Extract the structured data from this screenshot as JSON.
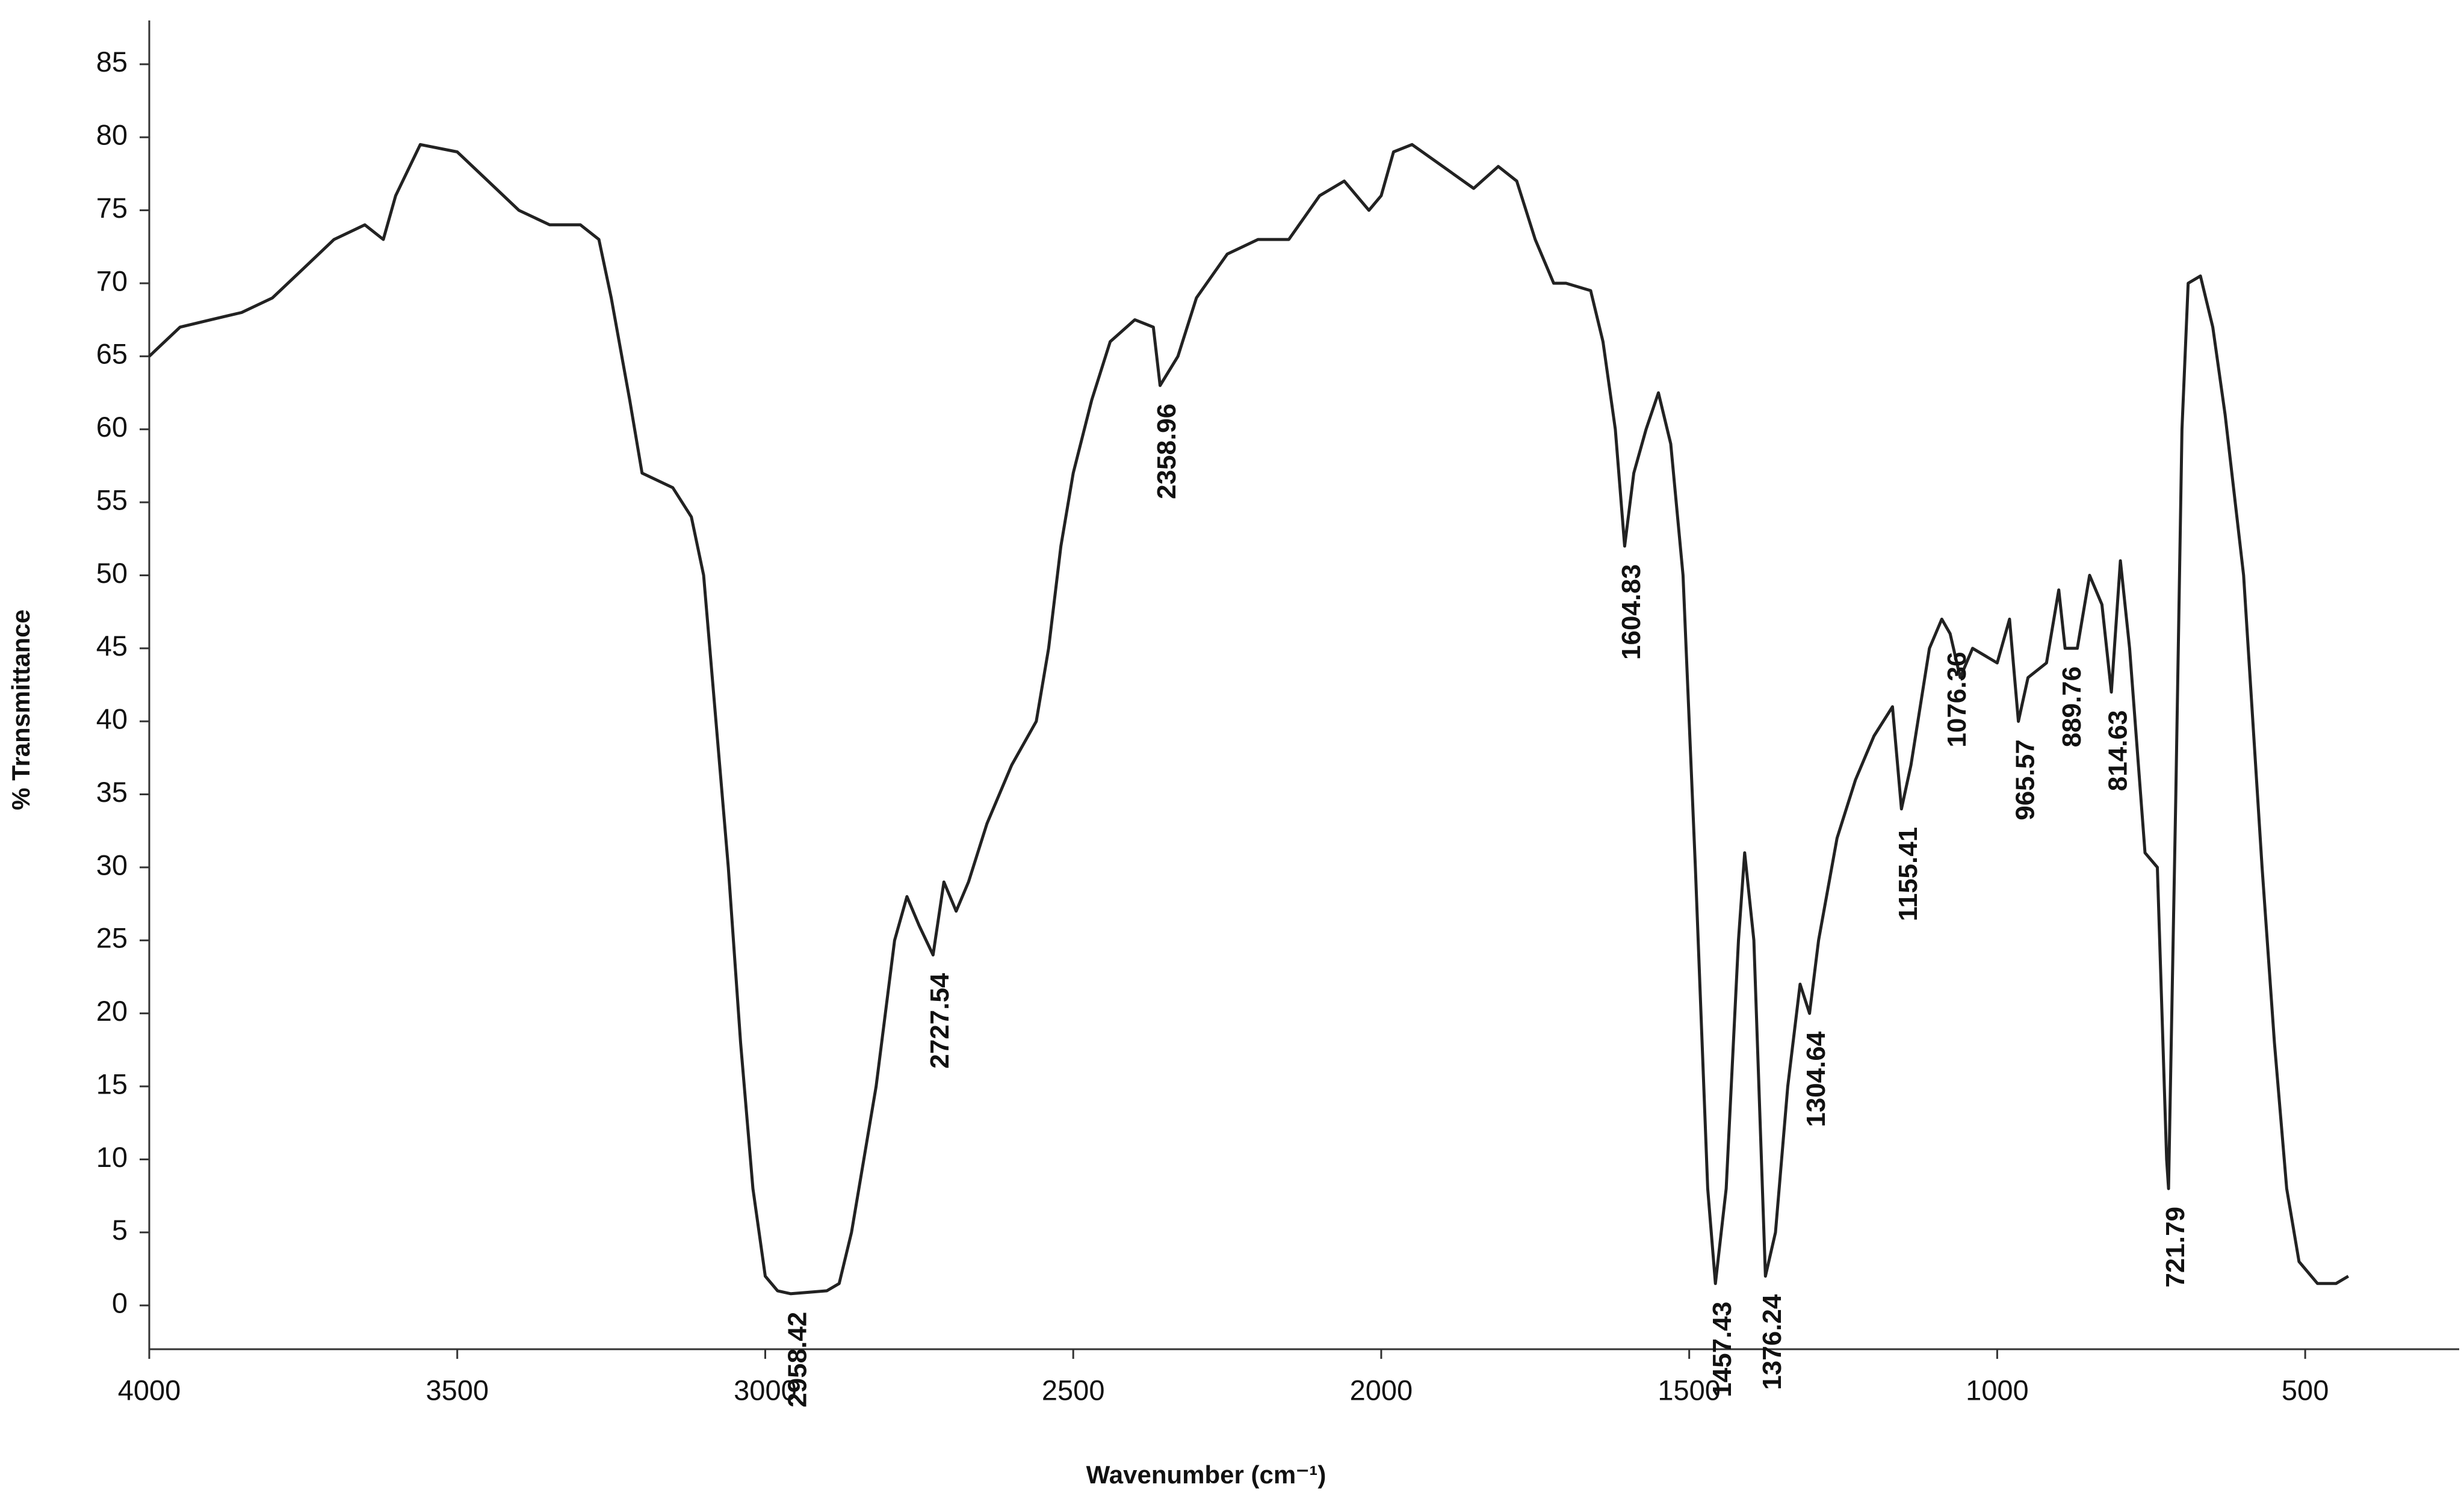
{
  "chart_data": {
    "type": "line",
    "x_label": "Wavenumber (cm⁻¹)",
    "y_label": "% Transmittance",
    "color": "#222222",
    "xlim": [
      4000,
      250
    ],
    "ylim": [
      -3,
      88
    ],
    "xticks": [
      4000,
      3500,
      3000,
      2500,
      2000,
      1500,
      1000,
      500
    ],
    "yticks": [
      0,
      5,
      10,
      15,
      20,
      25,
      30,
      35,
      40,
      45,
      50,
      55,
      60,
      65,
      70,
      75,
      80,
      85
    ],
    "x": [
      4000,
      3950,
      3900,
      3850,
      3800,
      3750,
      3700,
      3650,
      3620,
      3600,
      3560,
      3500,
      3450,
      3400,
      3350,
      3300,
      3270,
      3250,
      3220,
      3200,
      3150,
      3120,
      3100,
      3080,
      3060,
      3040,
      3020,
      3000,
      2980,
      2958.42,
      2900,
      2880,
      2860,
      2820,
      2790,
      2770,
      2750,
      2727.54,
      2710,
      2690,
      2670,
      2640,
      2600,
      2560,
      2540,
      2520,
      2500,
      2470,
      2440,
      2400,
      2370,
      2358.96,
      2330,
      2300,
      2250,
      2200,
      2150,
      2100,
      2060,
      2020,
      2000,
      1980,
      1950,
      1900,
      1850,
      1810,
      1780,
      1750,
      1720,
      1700,
      1660,
      1640,
      1620,
      1604.83,
      1590,
      1570,
      1550,
      1530,
      1510,
      1490,
      1470,
      1457.43,
      1440,
      1420,
      1410,
      1395,
      1376.24,
      1360,
      1340,
      1320,
      1304.64,
      1290,
      1260,
      1230,
      1200,
      1170,
      1155.41,
      1140,
      1110,
      1090,
      1076.36,
      1060,
      1040,
      1000,
      980,
      965.57,
      950,
      920,
      900,
      889.76,
      870,
      850,
      830,
      814.63,
      800,
      785,
      760,
      740,
      725,
      721.79,
      710,
      700,
      690,
      670,
      650,
      630,
      600,
      570,
      550,
      530,
      510,
      480,
      450,
      430
    ],
    "values": [
      65,
      67,
      67.5,
      68,
      69,
      71,
      73,
      74,
      73,
      76,
      79.5,
      79,
      77,
      75,
      74,
      74,
      73,
      69,
      62,
      57,
      56,
      54,
      50,
      40,
      30,
      18,
      8,
      2,
      1,
      0.8,
      1,
      1.5,
      5,
      15,
      25,
      28,
      26,
      24,
      29,
      27,
      29,
      33,
      37,
      40,
      45,
      52,
      57,
      62,
      66,
      67.5,
      67,
      63,
      65,
      69,
      72,
      73,
      73,
      76,
      77,
      75,
      76,
      79,
      79.5,
      78,
      76.5,
      78,
      77,
      73,
      70,
      70,
      69.5,
      66,
      60,
      52,
      57,
      60,
      62.5,
      59,
      50,
      30,
      8,
      1.5,
      8,
      25,
      31,
      25,
      2,
      5,
      15,
      22,
      20,
      25,
      32,
      36,
      39,
      41,
      34,
      37,
      45,
      47,
      46,
      43,
      45,
      44,
      47,
      40,
      43,
      44,
      49,
      45,
      45,
      50,
      48,
      42,
      51,
      45,
      31,
      30,
      10,
      8,
      35,
      60,
      70,
      70.5,
      67,
      61,
      50,
      30,
      18,
      8,
      3,
      1.5,
      1.5,
      2
    ],
    "peaks": [
      2958.42,
      2727.54,
      2358.96,
      1604.83,
      1457.43,
      1376.24,
      1304.64,
      1155.41,
      1076.36,
      965.57,
      889.76,
      814.63,
      721.79
    ]
  }
}
